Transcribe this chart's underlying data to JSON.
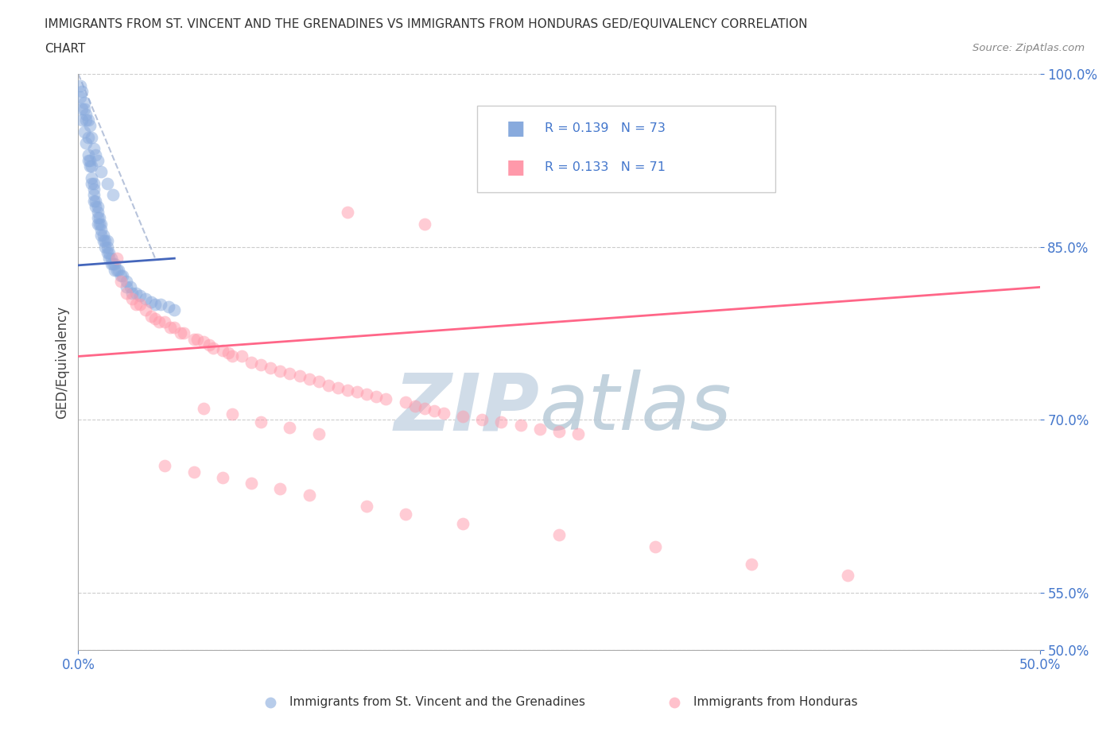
{
  "title_line1": "IMMIGRANTS FROM ST. VINCENT AND THE GRENADINES VS IMMIGRANTS FROM HONDURAS GED/EQUIVALENCY CORRELATION",
  "title_line2": "CHART",
  "source_text": "Source: ZipAtlas.com",
  "ylabel": "GED/Equivalency",
  "color_blue": "#88AADD",
  "color_pink": "#FF99AA",
  "color_blue_line": "#4466BB",
  "color_pink_line": "#FF6688",
  "color_dashed": "#99AACC",
  "color_label": "#4477CC",
  "xlim": [
    0.0,
    0.5
  ],
  "ylim": [
    0.5,
    1.0
  ],
  "ytick_positions": [
    0.5,
    0.55,
    0.7,
    0.85,
    1.0
  ],
  "yticklabels": [
    "50.0%",
    "55.0%",
    "70.0%",
    "85.0%",
    "100.0%"
  ],
  "blue_x": [
    0.001,
    0.002,
    0.002,
    0.003,
    0.003,
    0.004,
    0.004,
    0.005,
    0.005,
    0.005,
    0.006,
    0.006,
    0.007,
    0.007,
    0.007,
    0.008,
    0.008,
    0.008,
    0.008,
    0.009,
    0.009,
    0.01,
    0.01,
    0.01,
    0.01,
    0.011,
    0.011,
    0.012,
    0.012,
    0.012,
    0.013,
    0.013,
    0.014,
    0.014,
    0.015,
    0.015,
    0.015,
    0.016,
    0.016,
    0.017,
    0.017,
    0.018,
    0.019,
    0.019,
    0.02,
    0.021,
    0.022,
    0.023,
    0.025,
    0.025,
    0.027,
    0.028,
    0.03,
    0.032,
    0.035,
    0.038,
    0.04,
    0.043,
    0.047,
    0.05,
    0.001,
    0.002,
    0.003,
    0.004,
    0.005,
    0.006,
    0.007,
    0.008,
    0.009,
    0.01,
    0.012,
    0.015,
    0.018
  ],
  "blue_y": [
    0.98,
    0.97,
    0.96,
    0.97,
    0.95,
    0.96,
    0.94,
    0.945,
    0.93,
    0.925,
    0.925,
    0.92,
    0.92,
    0.91,
    0.905,
    0.905,
    0.9,
    0.895,
    0.89,
    0.89,
    0.885,
    0.885,
    0.88,
    0.875,
    0.87,
    0.875,
    0.87,
    0.87,
    0.865,
    0.86,
    0.86,
    0.855,
    0.855,
    0.85,
    0.855,
    0.85,
    0.845,
    0.845,
    0.84,
    0.84,
    0.835,
    0.835,
    0.835,
    0.83,
    0.83,
    0.83,
    0.825,
    0.825,
    0.82,
    0.815,
    0.815,
    0.81,
    0.81,
    0.808,
    0.805,
    0.802,
    0.8,
    0.8,
    0.798,
    0.795,
    0.99,
    0.985,
    0.975,
    0.965,
    0.96,
    0.955,
    0.945,
    0.935,
    0.93,
    0.925,
    0.915,
    0.905,
    0.895
  ],
  "pink_x": [
    0.02,
    0.022,
    0.025,
    0.028,
    0.03,
    0.032,
    0.035,
    0.038,
    0.04,
    0.042,
    0.045,
    0.048,
    0.05,
    0.053,
    0.055,
    0.06,
    0.062,
    0.065,
    0.068,
    0.07,
    0.075,
    0.078,
    0.08,
    0.085,
    0.09,
    0.095,
    0.1,
    0.105,
    0.11,
    0.115,
    0.12,
    0.125,
    0.13,
    0.135,
    0.14,
    0.145,
    0.15,
    0.155,
    0.16,
    0.17,
    0.175,
    0.18,
    0.185,
    0.19,
    0.2,
    0.21,
    0.22,
    0.23,
    0.24,
    0.25,
    0.26,
    0.065,
    0.08,
    0.095,
    0.11,
    0.125,
    0.045,
    0.06,
    0.075,
    0.09,
    0.105,
    0.12,
    0.15,
    0.17,
    0.2,
    0.25,
    0.3,
    0.35,
    0.4,
    0.18,
    0.14
  ],
  "pink_y": [
    0.84,
    0.82,
    0.81,
    0.805,
    0.8,
    0.8,
    0.795,
    0.79,
    0.788,
    0.785,
    0.785,
    0.78,
    0.78,
    0.775,
    0.775,
    0.77,
    0.77,
    0.768,
    0.765,
    0.762,
    0.76,
    0.758,
    0.755,
    0.755,
    0.75,
    0.748,
    0.745,
    0.742,
    0.74,
    0.738,
    0.735,
    0.733,
    0.73,
    0.728,
    0.726,
    0.724,
    0.722,
    0.72,
    0.718,
    0.715,
    0.712,
    0.71,
    0.708,
    0.706,
    0.703,
    0.7,
    0.698,
    0.695,
    0.692,
    0.69,
    0.688,
    0.71,
    0.705,
    0.698,
    0.693,
    0.688,
    0.66,
    0.655,
    0.65,
    0.645,
    0.64,
    0.635,
    0.625,
    0.618,
    0.61,
    0.6,
    0.59,
    0.575,
    0.565,
    0.87,
    0.88
  ],
  "bg_color": "#FFFFFF",
  "grid_color": "#CCCCCC"
}
